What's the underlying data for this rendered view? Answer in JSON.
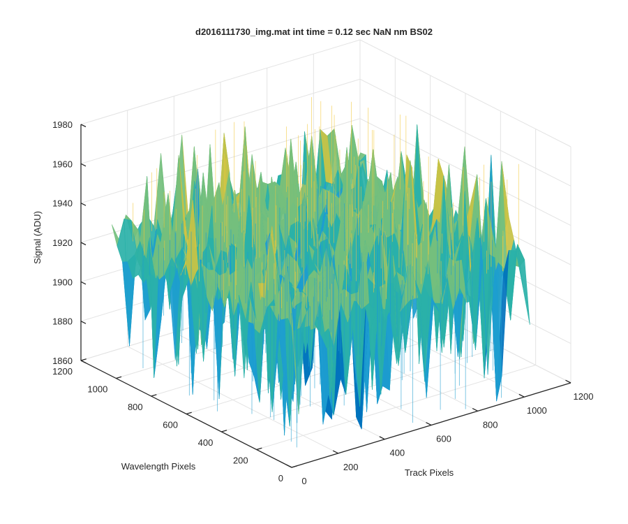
{
  "chart_data": {
    "type": "surface",
    "title": "d2016111730_img.mat int time = 0.12 sec  NaN nm BS02",
    "xlabel": "Track Pixels",
    "ylabel": "Wavelength Pixels",
    "zlabel": "Signal (ADU)",
    "xlim": [
      0,
      1200
    ],
    "ylim": [
      0,
      1200
    ],
    "zlim": [
      1860,
      1980
    ],
    "x_ticks": [
      0,
      200,
      400,
      600,
      800,
      1000,
      1200
    ],
    "y_ticks": [
      0,
      200,
      400,
      600,
      800,
      1000,
      1200
    ],
    "z_ticks": [
      1860,
      1880,
      1900,
      1920,
      1940,
      1960,
      1980
    ],
    "x_tick_labels": [
      "0",
      "200",
      "400",
      "600",
      "800",
      "1000",
      "1200"
    ],
    "y_tick_labels": [
      "0",
      "200",
      "400",
      "600",
      "800",
      "1000",
      "1200"
    ],
    "z_tick_labels": [
      "1860",
      "1880",
      "1900",
      "1920",
      "1940",
      "1960",
      "1980"
    ],
    "x_data_max": 1024,
    "y_data_max": 1024,
    "z_mean": 1928,
    "z_min_spike": 1860,
    "z_max_spike": 1975,
    "colormap": [
      "#0072bd",
      "#1d9dd0",
      "#2ab1a8",
      "#74bf7d",
      "#c7c245",
      "#f2c83a"
    ],
    "grid": true
  }
}
